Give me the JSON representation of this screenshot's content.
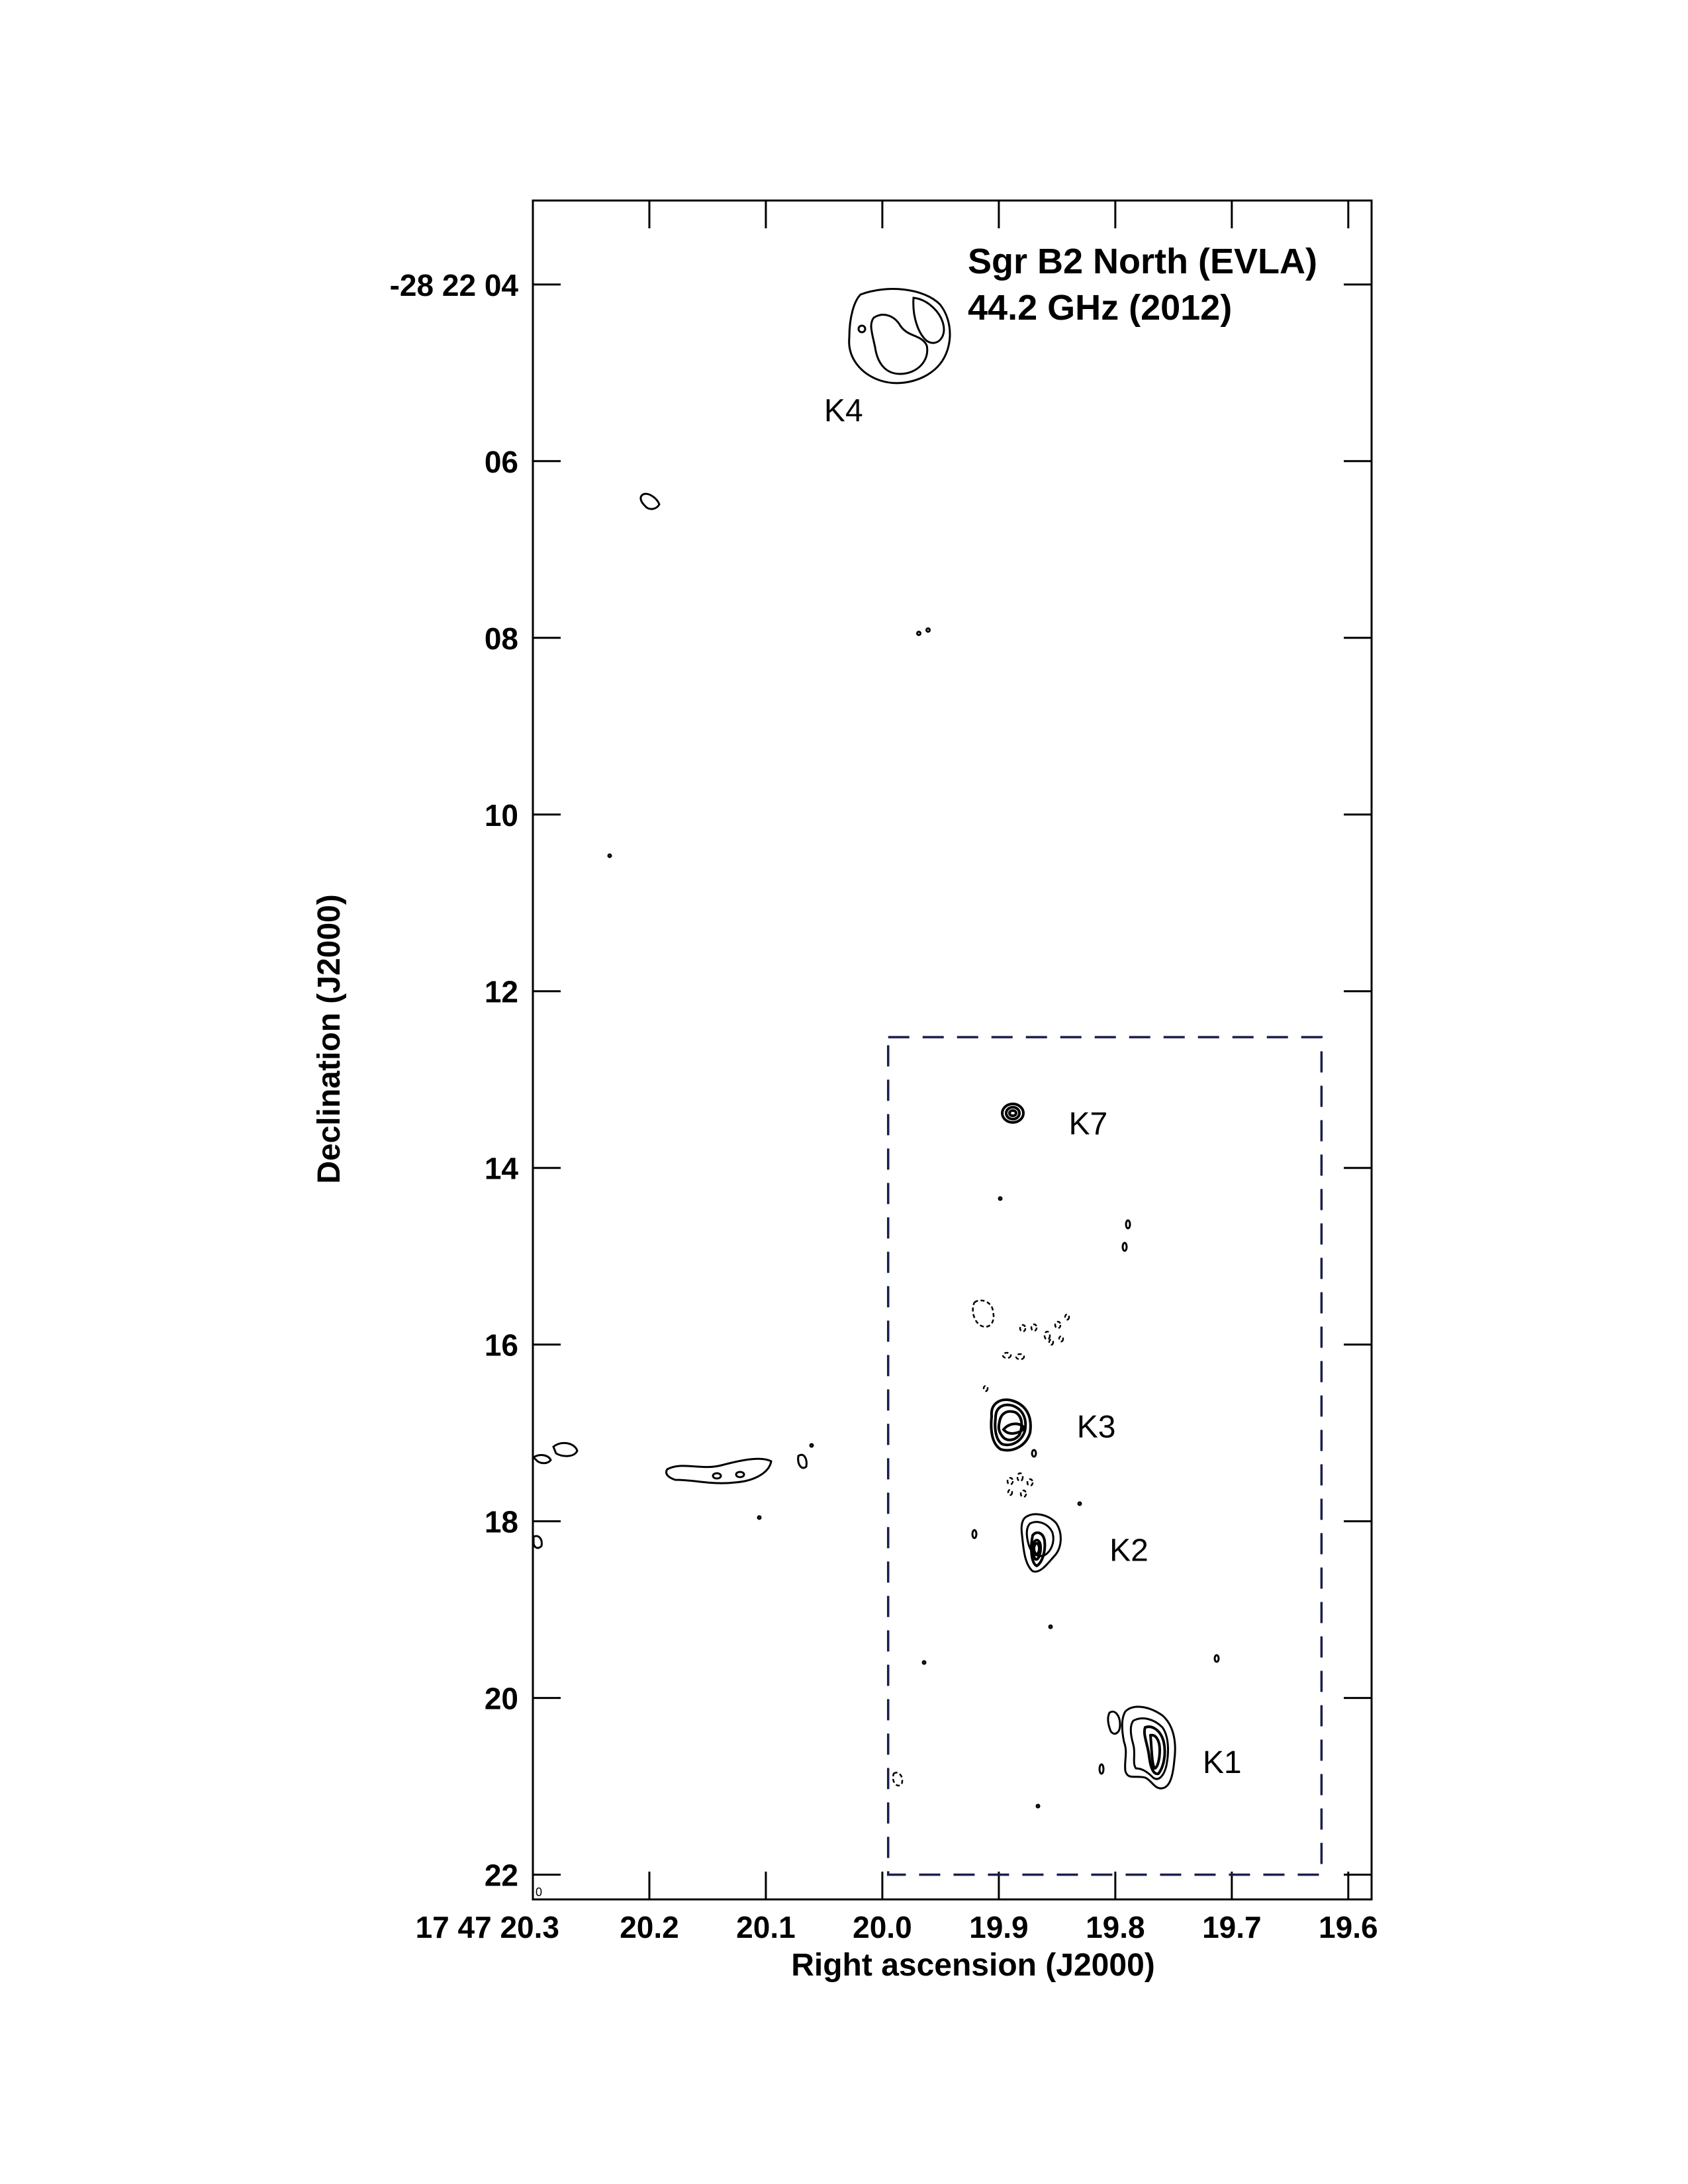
{
  "chart_data": {
    "type": "contour map",
    "title_lines": [
      "Sgr B2 North (EVLA)",
      "44.2 GHz (2012)"
    ],
    "xlabel": "Right ascension (J2000)",
    "ylabel": "Declination (J2000)",
    "x_ticks": [
      {
        "value": 20.3,
        "label": "17 47 20.3"
      },
      {
        "value": 20.2,
        "label": "20.2"
      },
      {
        "value": 20.1,
        "label": "20.1"
      },
      {
        "value": 20.0,
        "label": "20.0"
      },
      {
        "value": 19.9,
        "label": "19.9"
      },
      {
        "value": 19.8,
        "label": "19.8"
      },
      {
        "value": 19.7,
        "label": "19.7"
      },
      {
        "value": 19.6,
        "label": "19.6"
      }
    ],
    "y_ticks": [
      {
        "value": 4,
        "label": "-28 22 04"
      },
      {
        "value": 6,
        "label": "06"
      },
      {
        "value": 8,
        "label": "08"
      },
      {
        "value": 10,
        "label": "10"
      },
      {
        "value": 12,
        "label": "12"
      },
      {
        "value": 14,
        "label": "14"
      },
      {
        "value": 16,
        "label": "16"
      },
      {
        "value": 18,
        "label": "18"
      },
      {
        "value": 20,
        "label": "20"
      },
      {
        "value": 22,
        "label": "22"
      }
    ],
    "x_range": [
      20.3,
      19.58
    ],
    "y_range": [
      3.05,
      22.28
    ],
    "inset_box": {
      "ra": [
        19.995,
        19.623
      ],
      "dec": [
        12.52,
        22.0
      ],
      "style": "dashed"
    },
    "sources": [
      {
        "name": "K4",
        "ra": 19.963,
        "dec": 4.58,
        "label_ra": 20.05,
        "label_dec": 5.55
      },
      {
        "name": "K7",
        "ra": 19.89,
        "dec": 13.5,
        "label_ra": 19.84,
        "label_dec": 13.62
      },
      {
        "name": "K3",
        "ra": 19.884,
        "dec": 17.08,
        "label_ra": 19.833,
        "label_dec": 17.05
      },
      {
        "name": "K2",
        "ra": 19.866,
        "dec": 18.4,
        "label_ra": 19.805,
        "label_dec": 18.45
      },
      {
        "name": "K1",
        "ra": 19.776,
        "dec": 20.65,
        "label_ra": 19.725,
        "label_dec": 20.85
      }
    ]
  },
  "corner_mark": "0"
}
